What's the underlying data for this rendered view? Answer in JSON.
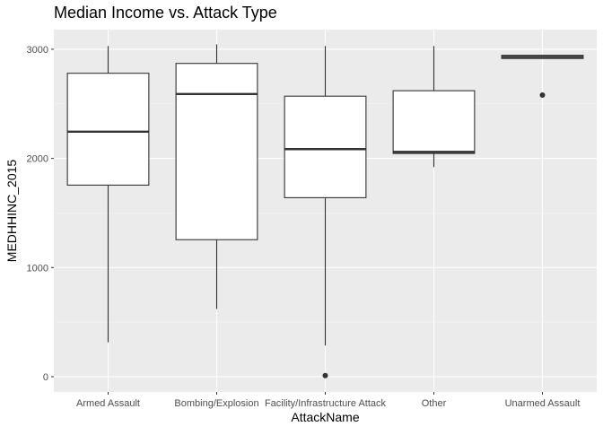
{
  "chart_data": {
    "type": "boxplot",
    "title": "Median Income vs. Attack Type",
    "xlabel": "AttackName",
    "ylabel": "MEDHHINC_2015",
    "ylim": [
      -140,
      3180
    ],
    "yticks": [
      0,
      1000,
      2000,
      3000
    ],
    "grid": true,
    "legend": "none",
    "categories": [
      "Armed Assault",
      "Bombing/Explosion",
      "Facility/Infrastructure Attack",
      "Other",
      "Unarmed Assault"
    ],
    "boxes": [
      {
        "min": 315,
        "q1": 1755,
        "median": 2245,
        "q3": 2780,
        "max": 3030,
        "outliers": []
      },
      {
        "min": 620,
        "q1": 1255,
        "median": 2590,
        "q3": 2870,
        "max": 3045,
        "outliers": []
      },
      {
        "min": 285,
        "q1": 1640,
        "median": 2085,
        "q3": 2570,
        "max": 3030,
        "outliers": [
          10
        ]
      },
      {
        "min": 1920,
        "q1": 2045,
        "median": 2060,
        "q3": 2620,
        "max": 3030,
        "outliers": []
      },
      {
        "min": 2915,
        "q1": 2915,
        "median": 2930,
        "q3": 2945,
        "max": 2945,
        "outliers": [
          2580
        ]
      }
    ],
    "colors": {
      "panel": "#EBEBEB",
      "grid_major": "#FFFFFF",
      "grid_minor": "#F4F4F4",
      "box_fill": "#FFFFFF",
      "box_line": "#333333",
      "tick_label": "#4D4D4D",
      "axis_title": "#000000"
    }
  }
}
